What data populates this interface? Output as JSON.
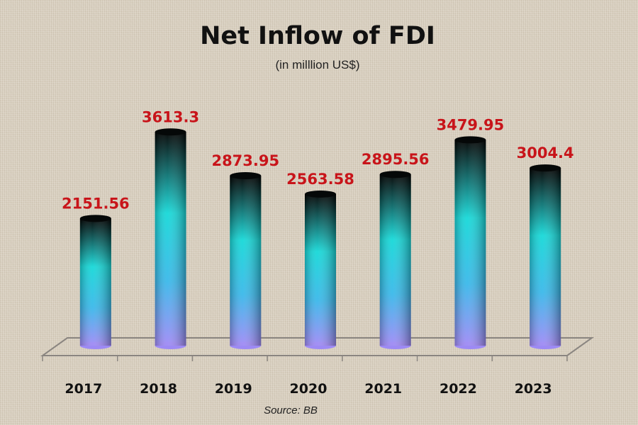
{
  "chart_data": {
    "type": "bar",
    "title": "Net Inflow of FDI",
    "subtitle": "(in  milllion US$)",
    "categories": [
      "2017",
      "2018",
      "2019",
      "2020",
      "2021",
      "2022",
      "2023"
    ],
    "values": [
      2151.56,
      3613.3,
      2873.95,
      2563.58,
      2895.56,
      3479.95,
      3004.4
    ],
    "data_labels": [
      "2151.56",
      "3613.3",
      "2873.95",
      "2563.58",
      "2895.56",
      "3479.95",
      "3004.4"
    ],
    "source": "Source: BB",
    "style": "3d-cylinder",
    "grid": false,
    "colors": {
      "label": "#c8141a",
      "bar_top": "#000000",
      "bar_mid": "#19d6d6",
      "bar_bottom": "#9a8cf5"
    }
  }
}
